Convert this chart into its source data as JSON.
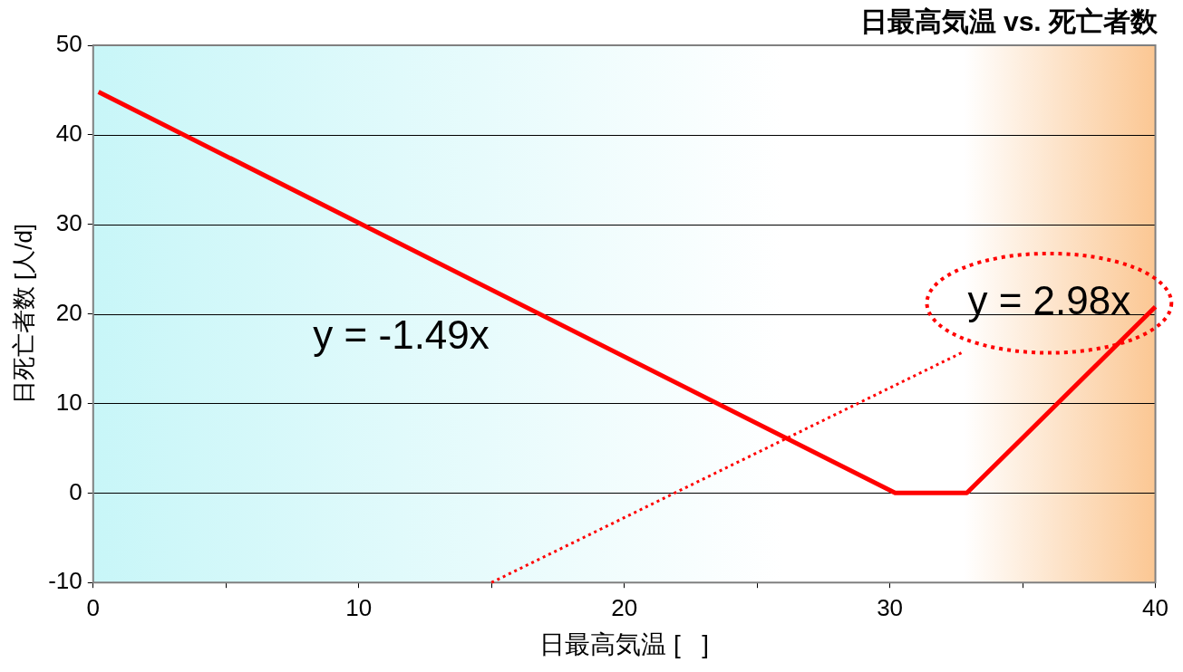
{
  "chart_data": {
    "type": "line",
    "title": "日最高気温 vs. 死亡者数",
    "xlabel": "日最高気温 [   ]",
    "ylabel": "日死亡者数 [人/d]",
    "xlim": [
      0,
      40
    ],
    "xticks": [
      0,
      {
        "value": 5,
        "label": null
      },
      10,
      {
        "value": 15,
        "label": null
      },
      20,
      {
        "value": 25,
        "label": null
      },
      30,
      {
        "value": 35,
        "label": null
      },
      40
    ],
    "ylim": [
      -10,
      50
    ],
    "yticks": [
      -10,
      0,
      10,
      20,
      30,
      40,
      50
    ],
    "grid": "y",
    "legend": false,
    "marker": "none",
    "series": [
      {
        "color": "#ff0000",
        "x": [
          0.2,
          30.2,
          32.9,
          40
        ],
        "values": [
          44.8,
          0,
          0,
          20.8
        ],
        "line_style": "solid"
      },
      {
        "color": "#ff0000",
        "x": [
          15,
          32.8
        ],
        "values": [
          -10,
          15.8
        ],
        "line_style": "dotted"
      }
    ],
    "annotations": [
      "y = -1.49x",
      "y = 2.98x"
    ]
  }
}
